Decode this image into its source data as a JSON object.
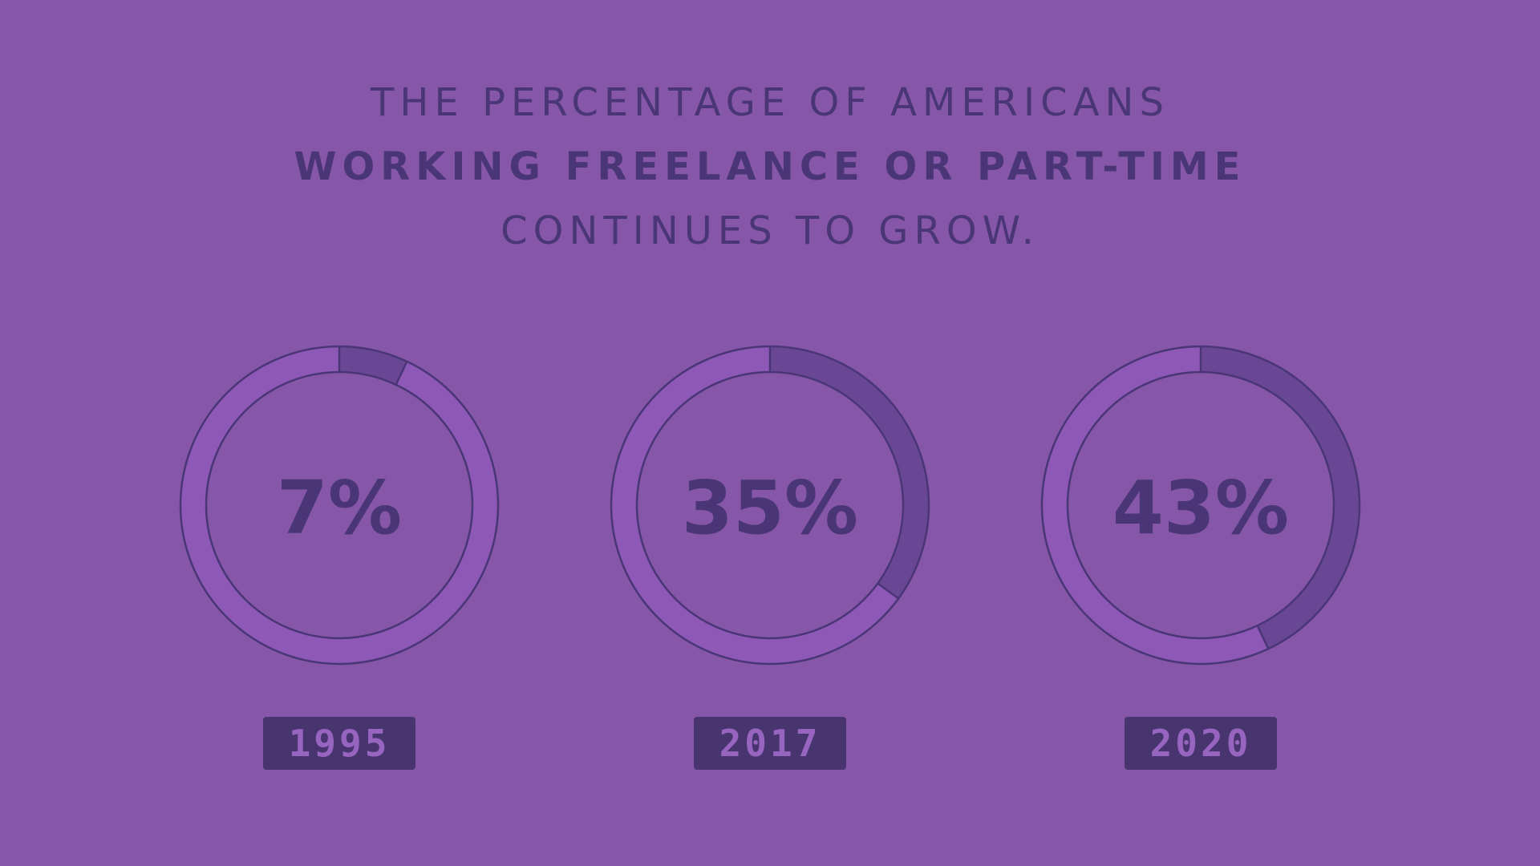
{
  "headline": {
    "line_1": "THE PERCENTAGE OF AMERICANS",
    "line_2": "WORKING FREELANCE OR PART-TIME",
    "line_3": "CONTINUES TO GROW."
  },
  "colors": {
    "background": "#8657a8",
    "ring_base": "#8e59b6",
    "ring_highlight": "#6a4795",
    "stroke": "#4a3677",
    "text": "#4a3677",
    "badge_bg": "#483570",
    "badge_text": "#9765c0"
  },
  "chart_data": {
    "type": "pie",
    "title": "THE PERCENTAGE OF AMERICANS WORKING FREELANCE OR PART-TIME CONTINUES TO GROW.",
    "categories": [
      "1995",
      "2017",
      "2020"
    ],
    "values": [
      7,
      35,
      43
    ],
    "value_labels": [
      "7%",
      "35%",
      "43%"
    ],
    "unit": "%"
  }
}
